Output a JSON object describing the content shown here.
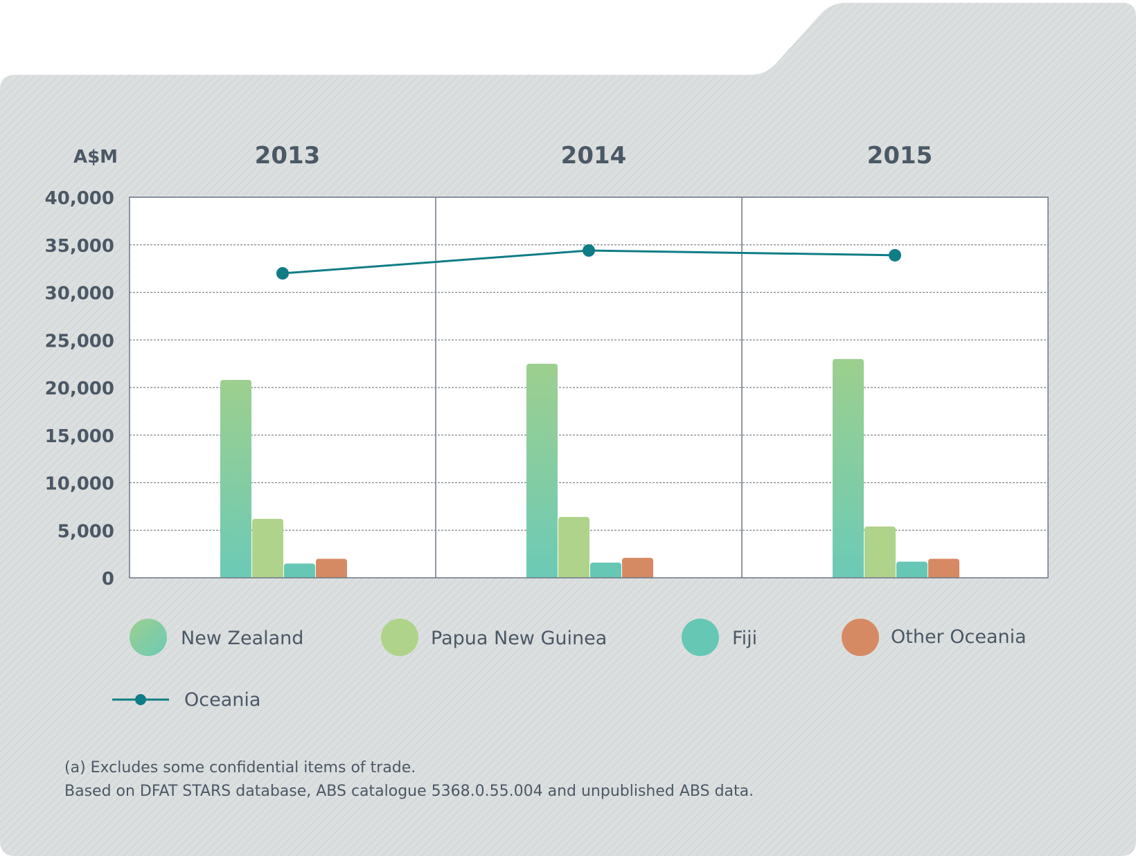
{
  "chart_data": {
    "type": "bar",
    "unit_label": "A$M",
    "categories": [
      "2013",
      "2014",
      "2015"
    ],
    "ylim": [
      0,
      40000
    ],
    "yticks": [
      "40,000",
      "35,000",
      "30,000",
      "25,000",
      "20,000",
      "15,000",
      "10,000",
      "5,000",
      "0"
    ],
    "ytick_values": [
      40000,
      35000,
      30000,
      25000,
      20000,
      15000,
      10000,
      5000,
      0
    ],
    "grid": true,
    "legend_position": "bottom",
    "series": [
      {
        "name": "New Zealand",
        "values": [
          20800,
          22500,
          23000
        ],
        "color": "#8fcf93",
        "color2": "#6ecab4"
      },
      {
        "name": "Papua New Guinea",
        "values": [
          6200,
          6400,
          5400
        ],
        "color": "#afd38a",
        "color2": "#afd38a"
      },
      {
        "name": "Fiji",
        "values": [
          1500,
          1600,
          1700
        ],
        "color": "#66c7b5",
        "color2": "#66c7b5"
      },
      {
        "name": "Other Oceania",
        "values": [
          2000,
          2100,
          2000
        ],
        "color": "#d68a63",
        "color2": "#d68a63"
      }
    ],
    "line_series": {
      "name": "Oceania",
      "values": [
        32000,
        34400,
        33900
      ],
      "color": "#107c85"
    },
    "notes": [
      "(a) Excludes some confidential items of trade.",
      "Based on DFAT STARS database, ABS catalogue 5368.0.55.004 and unpublished ABS data."
    ]
  }
}
